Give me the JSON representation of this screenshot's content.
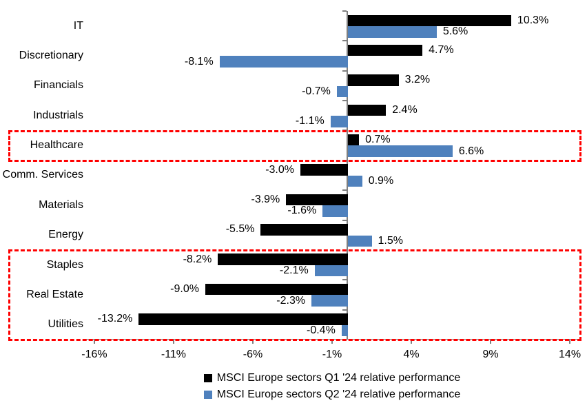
{
  "chart_data": {
    "type": "bar",
    "orientation": "horizontal",
    "categories": [
      "IT",
      "Discretionary",
      "Financials",
      "Industrials",
      "Healthcare",
      "Comm. Services",
      "Materials",
      "Energy",
      "Staples",
      "Real Estate",
      "Utilities"
    ],
    "series": [
      {
        "name": "MSCI Europe sectors Q1 '24 relative performance",
        "color": "#000000",
        "values": [
          10.3,
          4.7,
          3.2,
          2.4,
          0.7,
          -3.0,
          -3.9,
          -5.5,
          -8.2,
          -9.0,
          -13.2
        ]
      },
      {
        "name": "MSCI Europe sectors Q2 '24 relative performance",
        "color": "#4F81BD",
        "values": [
          5.6,
          -8.1,
          -0.7,
          -1.1,
          6.6,
          0.9,
          -1.6,
          1.5,
          -2.1,
          -2.3,
          -0.4
        ]
      }
    ],
    "x_ticks": [
      {
        "value": -16,
        "label": "-16%"
      },
      {
        "value": -11,
        "label": "-11%"
      },
      {
        "value": -6,
        "label": "-6%"
      },
      {
        "value": -1,
        "label": "-1%"
      },
      {
        "value": 4,
        "label": "4%"
      },
      {
        "value": 9,
        "label": "9%"
      },
      {
        "value": 14,
        "label": "14%"
      }
    ],
    "xlim": [
      -16.65,
      14.65
    ],
    "value_labels": true,
    "value_label_suffix": "%",
    "grid": false,
    "legend_position": "bottom",
    "axis_color": "#7f7f7f",
    "highlight_boxes": [
      {
        "rows": [
          4,
          4
        ],
        "color": "#FF0000",
        "style": "dashed",
        "note": "Healthcare highlighted"
      },
      {
        "rows": [
          8,
          10
        ],
        "color": "#FF0000",
        "style": "dashed",
        "note": "Staples, Real Estate, Utilities highlighted"
      }
    ]
  }
}
